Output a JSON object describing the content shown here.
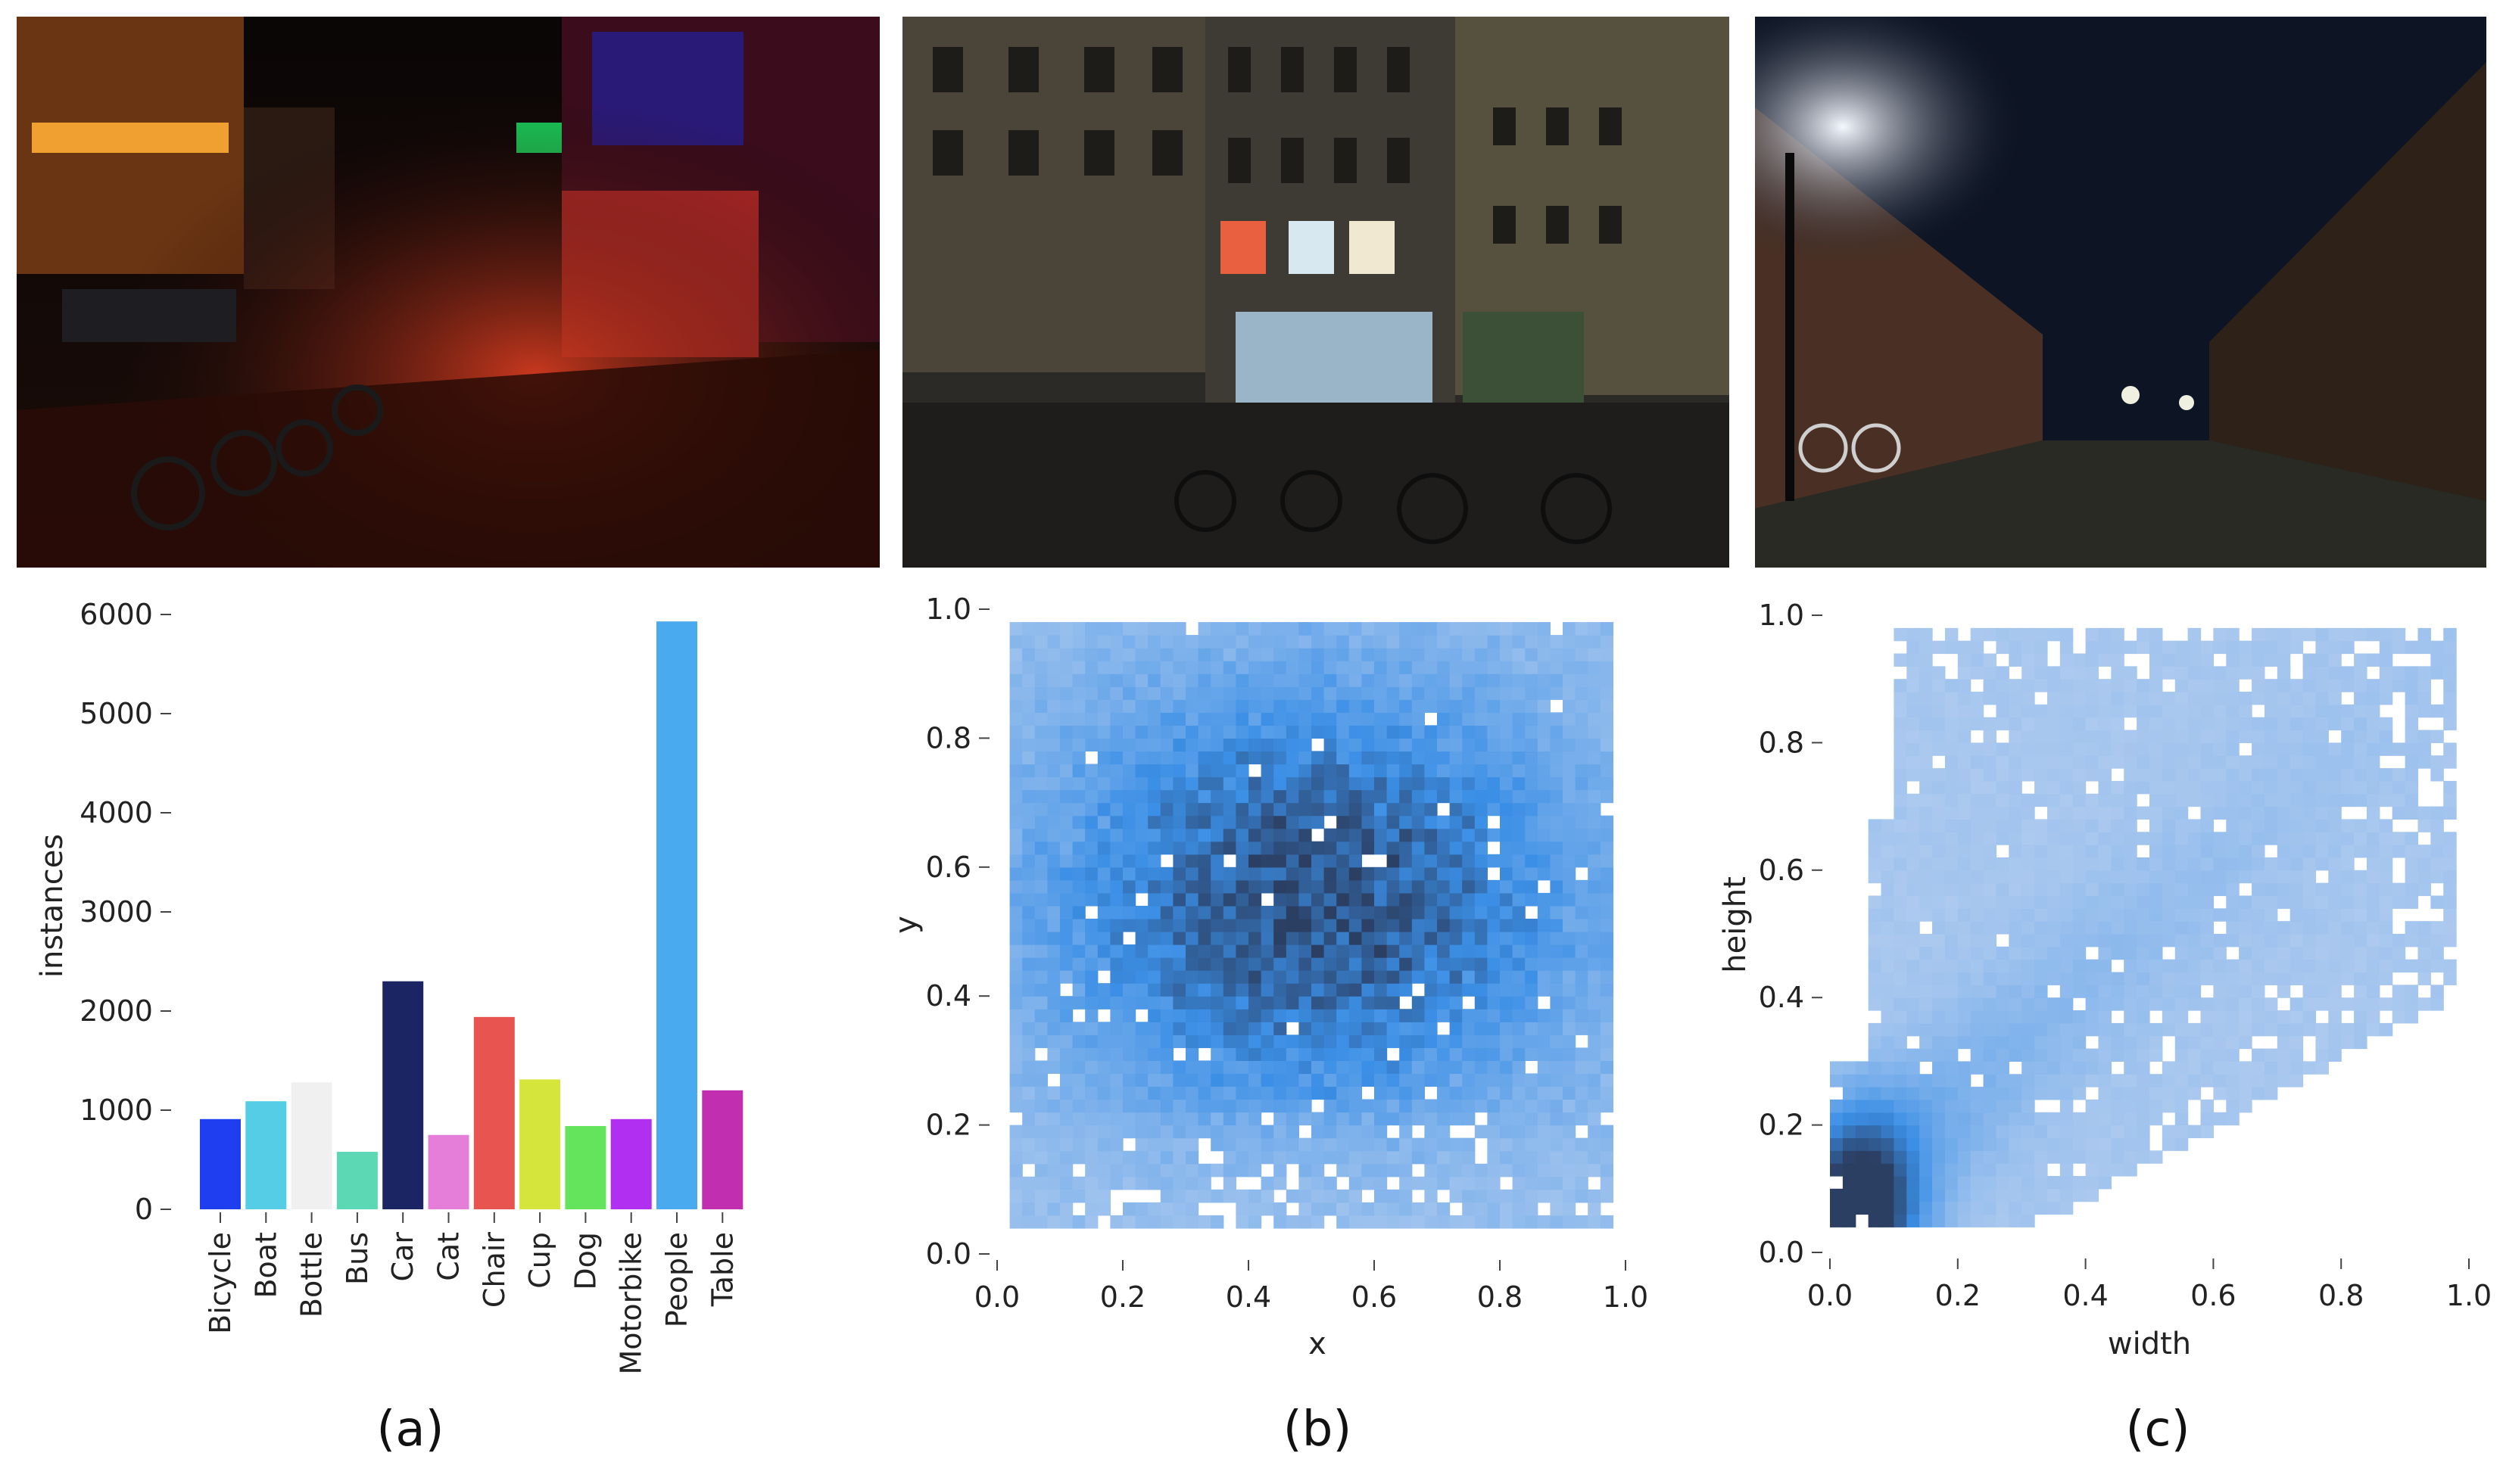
{
  "colors": {
    "heat_low": "#a9c5ec",
    "heat_mid": "#3b8fe6",
    "heat_high": "#2b3f63"
  },
  "chart_data": [
    {
      "type": "bar",
      "panel": "(a)",
      "categories": [
        "Bicycle",
        "Boat",
        "Bottle",
        "Bus",
        "Car",
        "Cat",
        "Chair",
        "Cup",
        "Dog",
        "Motorbike",
        "People",
        "Table"
      ],
      "values": [
        910,
        1090,
        1280,
        580,
        2300,
        750,
        1940,
        1310,
        840,
        910,
        5930,
        1200
      ],
      "colors": [
        "#1f3ef0",
        "#55cde6",
        "#f0f0f0",
        "#5dd8b4",
        "#1c2564",
        "#e57ed9",
        "#e8544f",
        "#d6e53c",
        "#64e35c",
        "#b12ff0",
        "#4aaaf0",
        "#c12fb0"
      ],
      "ylabel": "instances",
      "ylim": [
        0,
        6000
      ],
      "yticks": [
        "0",
        "1000",
        "2000",
        "3000",
        "4000",
        "5000",
        "6000"
      ],
      "grid": false
    },
    {
      "type": "heatmap",
      "panel": "(b)",
      "xlabel": "x",
      "ylabel": "y",
      "xlim": [
        0,
        1
      ],
      "ylim": [
        0,
        1
      ],
      "xticks": [
        "0.0",
        "0.2",
        "0.4",
        "0.6",
        "0.8",
        "1.0"
      ],
      "yticks": [
        "0.0",
        "0.2",
        "0.4",
        "0.6",
        "0.8",
        "1.0"
      ],
      "bins": 50,
      "data_extent": {
        "x": [
          0.02,
          0.98
        ],
        "y": [
          0.04,
          0.98
        ]
      },
      "peak": {
        "x": 0.5,
        "y": 0.55
      },
      "grid": false
    },
    {
      "type": "heatmap",
      "panel": "(c)",
      "xlabel": "width",
      "ylabel": "height",
      "xlim": [
        0,
        1
      ],
      "ylim": [
        0,
        1
      ],
      "xticks": [
        "0.0",
        "0.2",
        "0.4",
        "0.6",
        "0.8",
        "1.0"
      ],
      "yticks": [
        "0.0",
        "0.2",
        "0.4",
        "0.6",
        "0.8",
        "1.0"
      ],
      "bins": 50,
      "data_extent": {
        "x": [
          0.01,
          0.98
        ],
        "y": [
          0.04,
          0.98
        ]
      },
      "peak": {
        "x": 0.05,
        "y": 0.07
      },
      "grid": false
    }
  ],
  "panels": {
    "a": "(a)",
    "b": "(b)",
    "c": "(c)"
  }
}
